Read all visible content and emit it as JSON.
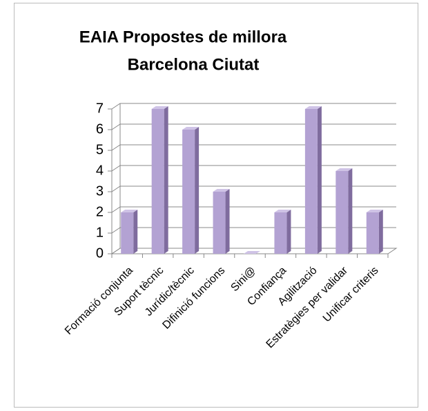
{
  "chart_data": {
    "type": "bar3d",
    "title": [
      "EAIA Propostes de millora",
      "Barcelona Ciutat"
    ],
    "categories": [
      "Formació conjunta",
      "Suport tècnic",
      "Jurídic/tècnic",
      "Difinició funcions",
      "Sini@",
      "Confiança",
      "Agilització",
      "Estratègies per validar",
      "Unificar criteris"
    ],
    "values": [
      2,
      7,
      6,
      3,
      0,
      2,
      7,
      4,
      2
    ],
    "color": "#b3a2d3",
    "ylim": [
      0,
      7
    ],
    "yticks": [
      0,
      1,
      2,
      3,
      4,
      5,
      6,
      7
    ],
    "grid": true
  }
}
